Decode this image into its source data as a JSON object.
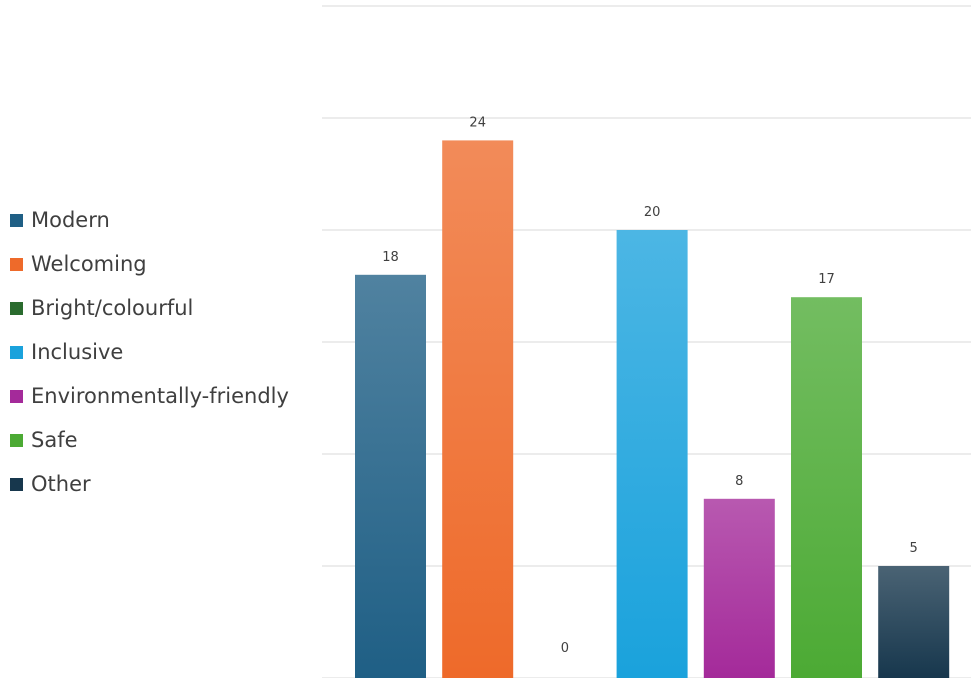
{
  "chart_data": {
    "type": "bar",
    "title": "",
    "xlabel": "",
    "ylabel": "",
    "ylim": [
      0,
      30
    ],
    "grid": true,
    "legend_position": "left",
    "categories": [
      "Modern",
      "Welcoming",
      "Bright/colourful",
      "Inclusive",
      "Environmentally-friendly",
      "Safe",
      "Other"
    ],
    "values": [
      18,
      24,
      0,
      20,
      8,
      17,
      5
    ],
    "colors": [
      "#1f5f85",
      "#ee6a2a",
      "#2a6b2e",
      "#1aa2dc",
      "#a42a9a",
      "#4caa34",
      "#17374d"
    ]
  }
}
